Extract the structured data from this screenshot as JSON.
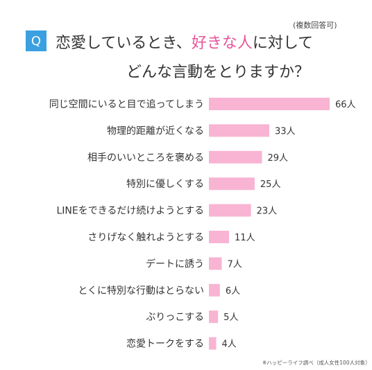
{
  "header": {
    "badge": "Q",
    "note": "(複数回答可)",
    "title_line1_pre": "恋愛しているとき、",
    "title_line1_accent": "好きな人",
    "title_line1_post": "に対して",
    "title_line2": "どんな言動をとりますか？"
  },
  "chart_data": {
    "type": "bar",
    "orientation": "horizontal",
    "categories": [
      "同じ空間にいると目で追ってしまう",
      "物理的距離が近くなる",
      "相手のいいところを褒める",
      "特別に優しくする",
      "LINEをできるだけ続けようとする",
      "さりげなく触れようとする",
      "デートに誘う",
      "とくに特別な行動はとらない",
      "ぶりっこする",
      "恋愛トークをする"
    ],
    "values": [
      66,
      33,
      29,
      25,
      23,
      11,
      7,
      6,
      5,
      4
    ],
    "value_labels": [
      "66人",
      "33人",
      "29人",
      "25人",
      "23人",
      "11人",
      "7人",
      "6人",
      "5人",
      "4人"
    ],
    "xlim": [
      0,
      66
    ],
    "grid": false,
    "bar_color": "#f8b4d2"
  },
  "footer": {
    "source": "※ハッピーライフ調べ（成人女性100人対象）"
  }
}
